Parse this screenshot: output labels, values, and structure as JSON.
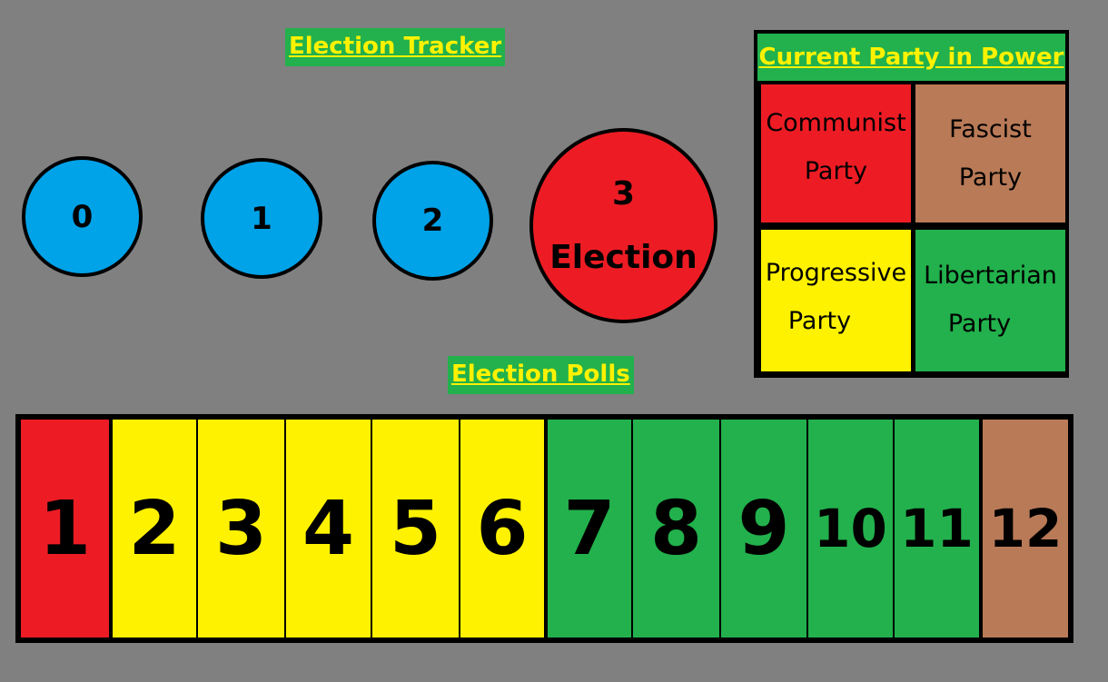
{
  "tracker": {
    "title": "Election Tracker",
    "steps": [
      {
        "number": "0",
        "color": "#00a2e8"
      },
      {
        "number": "1",
        "color": "#00a2e8"
      },
      {
        "number": "2",
        "color": "#00a2e8"
      },
      {
        "number": "3",
        "label": "Election",
        "color": "#ed1c24"
      }
    ]
  },
  "power": {
    "title": "Current Party in Power",
    "parties": [
      {
        "name": "Communist Party",
        "line1": "Communist",
        "line2": "Party",
        "color": "#ed1c24"
      },
      {
        "name": "Fascist Party",
        "line1": "Fascist",
        "line2": "Party",
        "color": "#b97a57"
      },
      {
        "name": "Progressive Party",
        "line1": "Progressive",
        "line2": "Party",
        "color": "#fff200"
      },
      {
        "name": "Libertarian Party",
        "line1": "Libertarian",
        "line2": "Party",
        "color": "#22b14c"
      }
    ]
  },
  "polls": {
    "title": "Election Polls",
    "cells": [
      {
        "label": "1",
        "color": "#ed1c24"
      },
      {
        "label": "2",
        "color": "#fff200"
      },
      {
        "label": "3",
        "color": "#fff200"
      },
      {
        "label": "4",
        "color": "#fff200"
      },
      {
        "label": "5",
        "color": "#fff200"
      },
      {
        "label": "6",
        "color": "#fff200"
      },
      {
        "label": "7",
        "color": "#22b14c"
      },
      {
        "label": "8",
        "color": "#22b14c"
      },
      {
        "label": "9",
        "color": "#22b14c"
      },
      {
        "label": "10",
        "color": "#22b14c"
      },
      {
        "label": "11",
        "color": "#22b14c"
      },
      {
        "label": "12",
        "color": "#b97a57"
      }
    ]
  }
}
